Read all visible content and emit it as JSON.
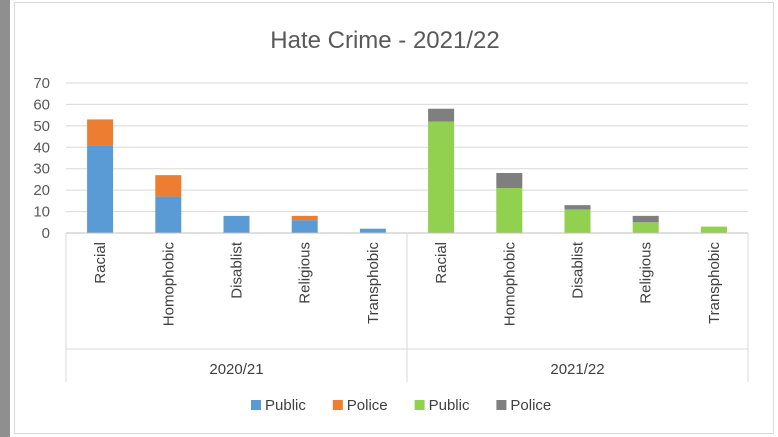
{
  "chart_data": {
    "type": "bar",
    "stacked": true,
    "title": "Hate Crime - 2021/22",
    "ylim": [
      0,
      70
    ],
    "yticks": [
      0,
      10,
      20,
      30,
      40,
      50,
      60,
      70
    ],
    "grid": true,
    "legend_position": "bottom",
    "groups": [
      {
        "label": "2020/21",
        "categories": [
          "Racial",
          "Homophobic",
          "Disablist",
          "Religious",
          "Transphobic"
        ],
        "series": [
          {
            "name": "Public",
            "color": "#5b9bd5",
            "values": [
              41,
              17,
              8,
              6,
              2
            ]
          },
          {
            "name": "Police",
            "color": "#ed7d31",
            "values": [
              12,
              10,
              0,
              2,
              0
            ]
          }
        ]
      },
      {
        "label": "2021/22",
        "categories": [
          "Racial",
          "Homophobic",
          "Disablist",
          "Religious",
          "Transphobic"
        ],
        "series": [
          {
            "name": "Public",
            "color": "#92d050",
            "values": [
              52,
              21,
              11,
              5,
              3
            ]
          },
          {
            "name": "Police",
            "color": "#7f7f7f",
            "values": [
              6,
              7,
              2,
              3,
              0
            ]
          }
        ]
      }
    ],
    "legend": [
      {
        "label": "Public",
        "color": "#5b9bd5"
      },
      {
        "label": "Police",
        "color": "#ed7d31"
      },
      {
        "label": "Public",
        "color": "#92d050"
      },
      {
        "label": "Police",
        "color": "#7f7f7f"
      }
    ]
  }
}
